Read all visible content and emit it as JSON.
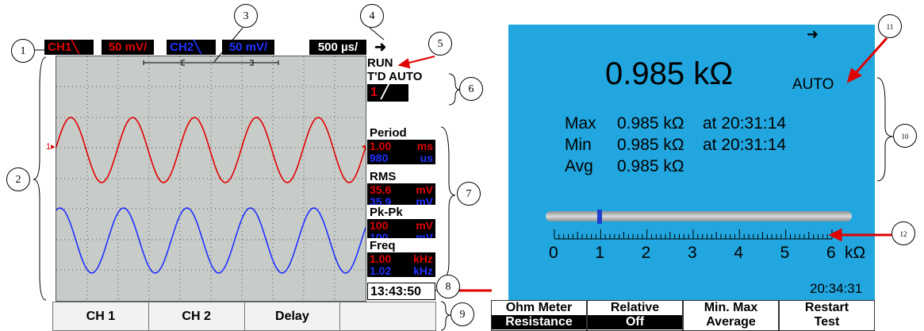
{
  "scope": {
    "ch1_label": "CH1",
    "ch1_scale": "50 mV/",
    "ch2_label": "CH2",
    "ch2_scale": "50 mV/",
    "timebase": "500 µs/",
    "run_state": "RUN",
    "trigger_mode": "T'D AUTO",
    "trigger_source": "1",
    "trigger_slope_icon": "rising-edge-icon",
    "ch1_marker": "1",
    "measurements": [
      {
        "label": "Period",
        "v1": "1.00",
        "u1": "ms",
        "v2": "980",
        "u2": "us"
      },
      {
        "label": "RMS",
        "v1": "35.6",
        "u1": "mV",
        "v2": "35.9",
        "u2": "mV"
      },
      {
        "label": "Pk-Pk",
        "v1": "100",
        "u1": "mV",
        "v2": "100",
        "u2": "mV"
      },
      {
        "label": "Freq",
        "v1": "1.00",
        "u1": "kHz",
        "v2": "1.02",
        "u2": "kHz"
      }
    ],
    "clock": "13:43:50",
    "softkeys": [
      "CH 1",
      "CH 2",
      "Delay",
      ""
    ]
  },
  "meter": {
    "reading": "0.985 kΩ",
    "range_mode": "AUTO",
    "stats": [
      {
        "label": "Max",
        "value": "0.985 kΩ",
        "time": "at 20:31:14"
      },
      {
        "label": "Min",
        "value": "0.985 kΩ",
        "time": "at 20:31:14"
      },
      {
        "label": "Avg",
        "value": "0.985 kΩ",
        "time": ""
      }
    ],
    "scale_labels": [
      "0",
      "1",
      "2",
      "3",
      "4",
      "5",
      "6"
    ],
    "scale_unit": "kΩ",
    "bar_fraction": 0.164,
    "clock": "20:34:31",
    "softkeys": [
      {
        "top": "Ohm Meter",
        "bottom": "Resistance"
      },
      {
        "top": "Relative",
        "bottom": "Off"
      },
      {
        "top": "Min. Max",
        "bottom": "Average"
      },
      {
        "top": "Restart",
        "bottom": "Test"
      }
    ]
  },
  "callouts": [
    "1",
    "2",
    "3",
    "4",
    "5",
    "6",
    "7",
    "8",
    "9",
    "10",
    "11",
    "12"
  ],
  "colors": {
    "ch1": "#e00000",
    "ch2": "#2030ff",
    "meter_bg": "#21a6df",
    "plot_bg": "#c8ccc8"
  }
}
